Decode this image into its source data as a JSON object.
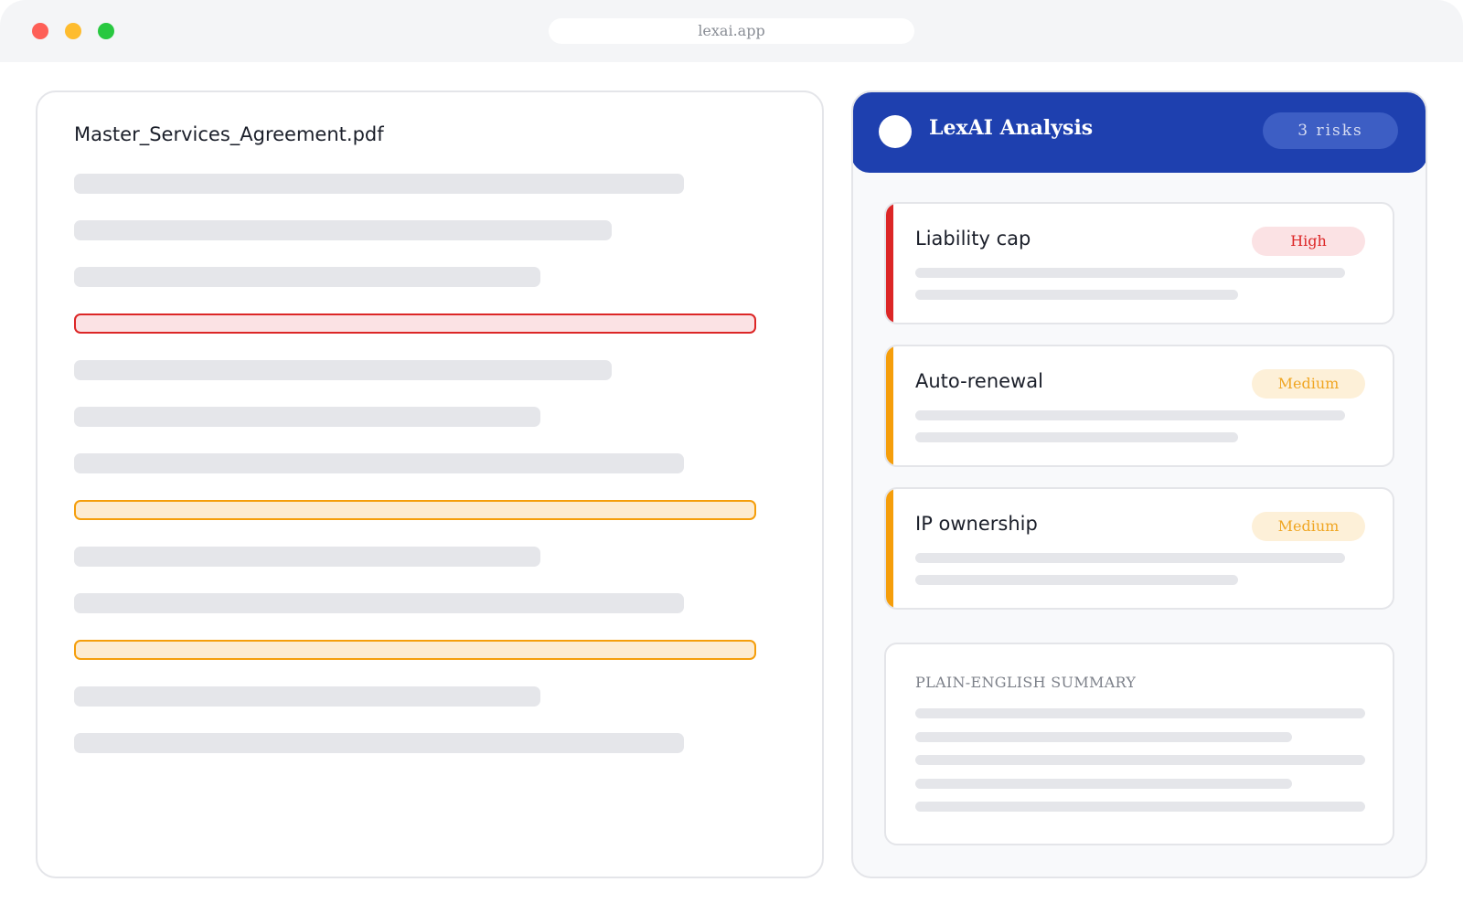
{
  "window": {
    "url": "lexai.app"
  },
  "document": {
    "filename": "Master_Services_Agreement.pdf",
    "highlighted_clauses": [
      {
        "severity": "High",
        "color": "#dc2626"
      },
      {
        "severity": "Medium",
        "color": "#f59e0b"
      },
      {
        "severity": "Medium",
        "color": "#f59e0b"
      }
    ]
  },
  "analysis": {
    "title": "LexAI Analysis",
    "risk_count": "3 risks",
    "risks": [
      {
        "title": "Liability cap",
        "severity": "High",
        "color": "#dc2626"
      },
      {
        "title": "Auto-renewal",
        "severity": "Medium",
        "color": "#f59e0b"
      },
      {
        "title": "IP ownership",
        "severity": "Medium",
        "color": "#f59e0b"
      }
    ],
    "summary": {
      "heading": "PLAIN-ENGLISH SUMMARY"
    }
  },
  "colors": {
    "brand": "#1e40af",
    "high": "#dc2626",
    "medium": "#f59e0b"
  }
}
